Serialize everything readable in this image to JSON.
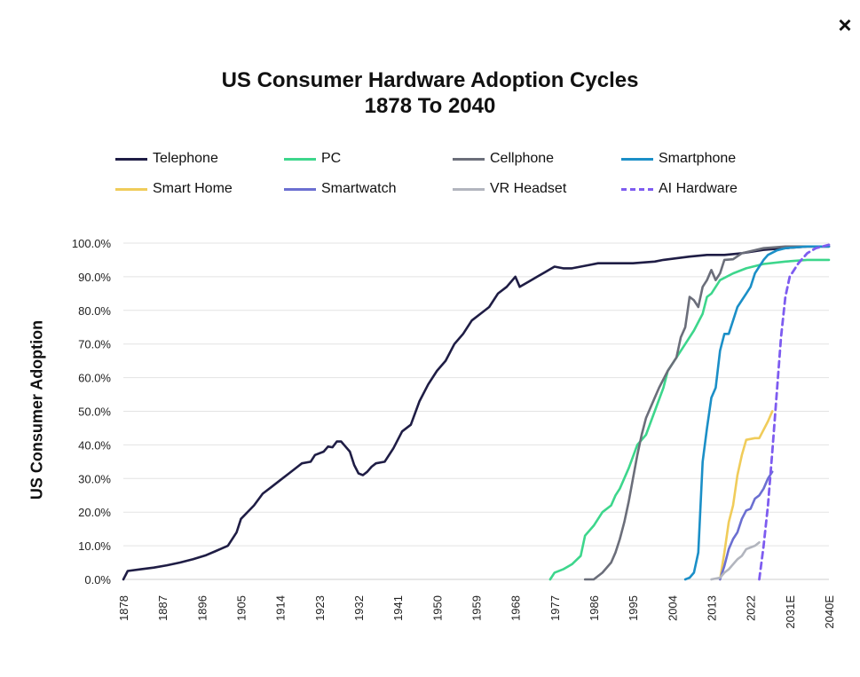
{
  "close_label": "×",
  "chart_data": {
    "type": "line",
    "title": "US Consumer Hardware Adoption Cycles",
    "subtitle": "1878 To 2040",
    "xlabel": "",
    "ylabel": "US Consumer Adoption",
    "ylim": [
      0,
      100
    ],
    "xlim": [
      1878,
      2040
    ],
    "y_ticks": [
      "0.0%",
      "10.0%",
      "20.0%",
      "30.0%",
      "40.0%",
      "50.0%",
      "60.0%",
      "70.0%",
      "80.0%",
      "90.0%",
      "100.0%"
    ],
    "x_ticks": [
      {
        "x": 1878,
        "label": "1878"
      },
      {
        "x": 1887,
        "label": "1887"
      },
      {
        "x": 1896,
        "label": "1896"
      },
      {
        "x": 1905,
        "label": "1905"
      },
      {
        "x": 1914,
        "label": "1914"
      },
      {
        "x": 1923,
        "label": "1923"
      },
      {
        "x": 1932,
        "label": "1932"
      },
      {
        "x": 1941,
        "label": "1941"
      },
      {
        "x": 1950,
        "label": "1950"
      },
      {
        "x": 1959,
        "label": "1959"
      },
      {
        "x": 1968,
        "label": "1968"
      },
      {
        "x": 1977,
        "label": "1977"
      },
      {
        "x": 1986,
        "label": "1986"
      },
      {
        "x": 1995,
        "label": "1995"
      },
      {
        "x": 2004,
        "label": "2004"
      },
      {
        "x": 2013,
        "label": "2013"
      },
      {
        "x": 2022,
        "label": "2022"
      },
      {
        "x": 2031,
        "label": "2031E"
      },
      {
        "x": 2040,
        "label": "2040E"
      }
    ],
    "grid": true,
    "legend_position": "top",
    "series": [
      {
        "name": "Telephone",
        "color": "#1f1d45",
        "dashed": false,
        "points": [
          [
            1878,
            0
          ],
          [
            1879,
            2.5
          ],
          [
            1882,
            3
          ],
          [
            1885,
            3.5
          ],
          [
            1888,
            4.2
          ],
          [
            1891,
            5
          ],
          [
            1894,
            6
          ],
          [
            1897,
            7.2
          ],
          [
            1899,
            8.3
          ],
          [
            1902,
            10
          ],
          [
            1904,
            14
          ],
          [
            1905,
            18
          ],
          [
            1908,
            22
          ],
          [
            1910,
            25.5
          ],
          [
            1912,
            27.5
          ],
          [
            1914,
            29.5
          ],
          [
            1916,
            31.5
          ],
          [
            1918,
            33.5
          ],
          [
            1919,
            34.5
          ],
          [
            1921,
            35
          ],
          [
            1922,
            37
          ],
          [
            1924,
            38
          ],
          [
            1925,
            39.5
          ],
          [
            1926,
            39.3
          ],
          [
            1927,
            41
          ],
          [
            1928,
            41
          ],
          [
            1929,
            39.5
          ],
          [
            1930,
            38
          ],
          [
            1931,
            34
          ],
          [
            1932,
            31.5
          ],
          [
            1933,
            31
          ],
          [
            1934,
            32
          ],
          [
            1935,
            33.5
          ],
          [
            1936,
            34.5
          ],
          [
            1938,
            35
          ],
          [
            1940,
            39
          ],
          [
            1942,
            44
          ],
          [
            1944,
            46
          ],
          [
            1946,
            53
          ],
          [
            1948,
            58
          ],
          [
            1950,
            62
          ],
          [
            1952,
            65
          ],
          [
            1954,
            70
          ],
          [
            1956,
            73
          ],
          [
            1958,
            77
          ],
          [
            1960,
            79
          ],
          [
            1962,
            81
          ],
          [
            1964,
            85
          ],
          [
            1966,
            87
          ],
          [
            1968,
            90
          ],
          [
            1969,
            87
          ],
          [
            1971,
            88.5
          ],
          [
            1973,
            90
          ],
          [
            1975,
            91.5
          ],
          [
            1977,
            93
          ],
          [
            1979,
            92.5
          ],
          [
            1981,
            92.5
          ],
          [
            1983,
            93
          ],
          [
            1985,
            93.5
          ],
          [
            1987,
            94
          ],
          [
            1990,
            94
          ],
          [
            1995,
            94
          ],
          [
            2000,
            94.5
          ],
          [
            2002,
            95
          ],
          [
            2005,
            95.5
          ],
          [
            2008,
            96
          ],
          [
            2012,
            96.5
          ],
          [
            2016,
            96.5
          ],
          [
            2020,
            97
          ],
          [
            2025,
            98
          ],
          [
            2030,
            98.5
          ],
          [
            2035,
            99
          ],
          [
            2040,
            99
          ]
        ]
      },
      {
        "name": "PC",
        "color": "#3dd68c",
        "dashed": false,
        "points": [
          [
            1976,
            0
          ],
          [
            1977,
            2
          ],
          [
            1979,
            3
          ],
          [
            1981,
            4.5
          ],
          [
            1983,
            7
          ],
          [
            1984,
            13
          ],
          [
            1986,
            16
          ],
          [
            1988,
            20
          ],
          [
            1990,
            22
          ],
          [
            1991,
            25
          ],
          [
            1992,
            27
          ],
          [
            1994,
            33
          ],
          [
            1996,
            40
          ],
          [
            1998,
            43
          ],
          [
            2000,
            50
          ],
          [
            2002,
            57
          ],
          [
            2003,
            62
          ],
          [
            2005,
            66
          ],
          [
            2007,
            70
          ],
          [
            2009,
            74
          ],
          [
            2011,
            79
          ],
          [
            2012,
            84
          ],
          [
            2013,
            85
          ],
          [
            2015,
            89
          ],
          [
            2018,
            91
          ],
          [
            2021,
            92.5
          ],
          [
            2025,
            93.8
          ],
          [
            2030,
            94.5
          ],
          [
            2035,
            95
          ],
          [
            2040,
            95
          ]
        ]
      },
      {
        "name": "Cellphone",
        "color": "#6b6e7a",
        "dashed": false,
        "points": [
          [
            1984,
            0
          ],
          [
            1986,
            0
          ],
          [
            1988,
            2
          ],
          [
            1990,
            5
          ],
          [
            1991,
            8
          ],
          [
            1992,
            12
          ],
          [
            1993,
            17
          ],
          [
            1994,
            23
          ],
          [
            1995,
            30
          ],
          [
            1996,
            37
          ],
          [
            1997,
            43
          ],
          [
            1998,
            48
          ],
          [
            2000,
            54
          ],
          [
            2001,
            57
          ],
          [
            2003,
            62
          ],
          [
            2005,
            66
          ],
          [
            2006,
            72
          ],
          [
            2007,
            75
          ],
          [
            2008,
            84
          ],
          [
            2009,
            83
          ],
          [
            2010,
            81
          ],
          [
            2011,
            87
          ],
          [
            2012,
            89
          ],
          [
            2013,
            92
          ],
          [
            2014,
            89
          ],
          [
            2015,
            91
          ],
          [
            2016,
            95
          ],
          [
            2018,
            95.2
          ],
          [
            2020,
            97
          ],
          [
            2025,
            98.5
          ],
          [
            2030,
            99
          ],
          [
            2040,
            99
          ]
        ]
      },
      {
        "name": "Smartphone",
        "color": "#1b8fc7",
        "dashed": false,
        "points": [
          [
            2007,
            0
          ],
          [
            2008,
            0.5
          ],
          [
            2009,
            2
          ],
          [
            2010,
            8
          ],
          [
            2011,
            35
          ],
          [
            2012,
            45
          ],
          [
            2013,
            54
          ],
          [
            2014,
            57
          ],
          [
            2015,
            68
          ],
          [
            2016,
            73
          ],
          [
            2017,
            73
          ],
          [
            2018,
            77
          ],
          [
            2019,
            81
          ],
          [
            2020,
            83
          ],
          [
            2021,
            85
          ],
          [
            2022,
            87
          ],
          [
            2023,
            91
          ],
          [
            2024,
            93
          ],
          [
            2025,
            95
          ],
          [
            2026,
            96.5
          ],
          [
            2028,
            97.8
          ],
          [
            2030,
            98.5
          ],
          [
            2035,
            99
          ],
          [
            2040,
            99
          ]
        ]
      },
      {
        "name": "Smart Home",
        "color": "#f0cc5a",
        "dashed": false,
        "points": [
          [
            2015,
            0
          ],
          [
            2016,
            8
          ],
          [
            2017,
            17
          ],
          [
            2018,
            22
          ],
          [
            2019,
            31
          ],
          [
            2020,
            37
          ],
          [
            2021,
            41.5
          ],
          [
            2023,
            42
          ],
          [
            2024,
            42
          ],
          [
            2026,
            47
          ],
          [
            2027,
            50
          ]
        ]
      },
      {
        "name": "Smartwatch",
        "color": "#6b6fd1",
        "dashed": false,
        "points": [
          [
            2015,
            0
          ],
          [
            2016,
            4
          ],
          [
            2017,
            9
          ],
          [
            2018,
            12
          ],
          [
            2019,
            14
          ],
          [
            2020,
            18
          ],
          [
            2021,
            20.5
          ],
          [
            2022,
            21
          ],
          [
            2023,
            24
          ],
          [
            2024,
            25
          ],
          [
            2025,
            27
          ],
          [
            2026,
            30
          ],
          [
            2027,
            32
          ]
        ]
      },
      {
        "name": "VR Headset",
        "color": "#b2b5be",
        "dashed": false,
        "points": [
          [
            2013,
            0
          ],
          [
            2015,
            0.5
          ],
          [
            2016,
            2
          ],
          [
            2017,
            3
          ],
          [
            2019,
            6
          ],
          [
            2020,
            7
          ],
          [
            2021,
            9
          ],
          [
            2022,
            9.5
          ],
          [
            2023,
            10
          ],
          [
            2024,
            11
          ]
        ]
      },
      {
        "name": "AI Hardware",
        "color": "#7e5cf0",
        "dashed": true,
        "points": [
          [
            2024,
            0
          ],
          [
            2025,
            10
          ],
          [
            2026,
            22
          ],
          [
            2027,
            38
          ],
          [
            2028,
            55
          ],
          [
            2029,
            72
          ],
          [
            2030,
            84
          ],
          [
            2031,
            90
          ],
          [
            2033,
            94
          ],
          [
            2035,
            97
          ],
          [
            2037,
            98.5
          ],
          [
            2040,
            99.5
          ]
        ]
      }
    ]
  }
}
